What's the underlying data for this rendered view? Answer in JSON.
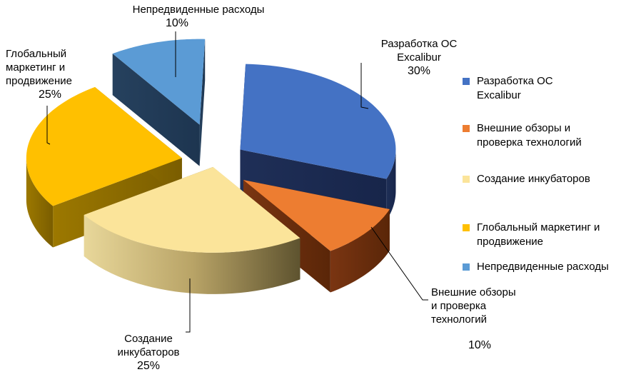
{
  "chart_data": {
    "type": "pie",
    "style": "3d-exploded",
    "title": "",
    "categories": [
      "Разработка ОС Excalibur",
      "Внешние обзоры и проверка технологий",
      "Создание инкубаторов",
      "Глобальный маркетинг и продвижение",
      "Непредвиденные расходы"
    ],
    "values": [
      30,
      10,
      25,
      25,
      10
    ],
    "value_labels": [
      "30%",
      "10%",
      "25%",
      "25%",
      "10%"
    ],
    "colors": [
      "#4472C4",
      "#ED7D31",
      "#FBE49A",
      "#FFC000",
      "#5B9BD5"
    ],
    "legend_position": "right"
  },
  "labels": {
    "s0_line1": "Разработка ОС",
    "s0_line2": "Excalibur",
    "s0_pct": "30%",
    "s1_line1": "Внешние обзоры",
    "s1_line2": "и проверка",
    "s1_line3": "технологий",
    "s1_pct": "10%",
    "s2_line1": "Создание",
    "s2_line2": "инкубаторов",
    "s2_pct": "25%",
    "s3_line1": "Глобальный",
    "s3_line2": "маркетинг и",
    "s3_line3": "продвижение",
    "s3_pct": "25%",
    "s4_line1": "Непредвиденные расходы",
    "s4_pct": "10%"
  },
  "legend": [
    {
      "line1": "Разработка ОС",
      "line2": "Excalibur"
    },
    {
      "line1": "Внешние обзоры и",
      "line2": "проверка технологий"
    },
    {
      "line1": "Создание инкубаторов",
      "line2": ""
    },
    {
      "line1": "Глобальный маркетинг и",
      "line2": "продвижение"
    },
    {
      "line1": "Непредвиденные расходы",
      "line2": ""
    }
  ]
}
